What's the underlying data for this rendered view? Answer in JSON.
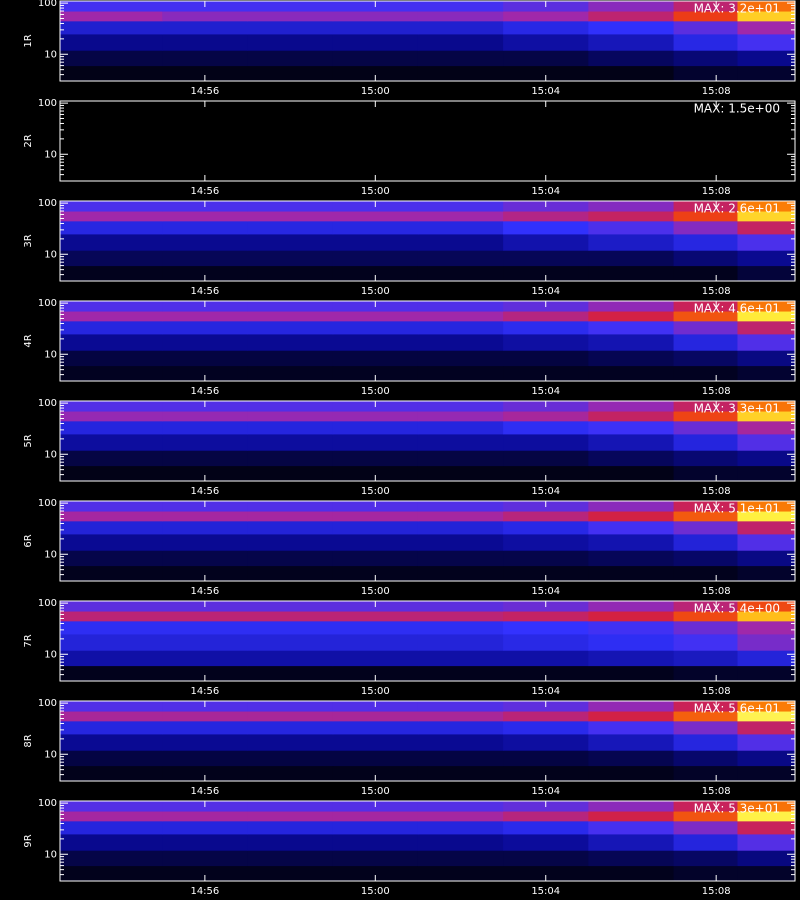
{
  "chart_data": [
    {
      "type": "heatmap",
      "ylabel": "1R",
      "annotation": "MAX: 3.2e+01",
      "log_y": true,
      "frame_color": "#ffffff",
      "x_bins": [
        892.6,
        895,
        897,
        899,
        901,
        903,
        905,
        907,
        908.5,
        909.85
      ],
      "y_bins": [
        3,
        6,
        12,
        25,
        45,
        70,
        110
      ],
      "values": [
        [
          1,
          1,
          1,
          1,
          1,
          1,
          1,
          2,
          2
        ],
        [
          3,
          3,
          3,
          3,
          3,
          3,
          4,
          5,
          6
        ],
        [
          6,
          6,
          6,
          6,
          6,
          7,
          8,
          10,
          12
        ],
        [
          9,
          9,
          9,
          9,
          9,
          10,
          11,
          13,
          16
        ],
        [
          16,
          15,
          15,
          15,
          15,
          16,
          18,
          22,
          28
        ],
        [
          12,
          12,
          12,
          12,
          12,
          13,
          15,
          18,
          24
        ]
      ],
      "value_max": 32,
      "xlim": [
        892.6,
        909.85
      ],
      "ylim": [
        3,
        110
      ],
      "xticks": [
        {
          "value": 896,
          "label": "14:56"
        },
        {
          "value": 900,
          "label": "15:00"
        },
        {
          "value": 904,
          "label": "15:04"
        },
        {
          "value": 908,
          "label": "15:08"
        }
      ],
      "yticks": [
        10,
        100
      ],
      "yminorticks": [
        4,
        5,
        6,
        7,
        8,
        9,
        20,
        30,
        40,
        50,
        60,
        70,
        80,
        90
      ]
    },
    {
      "type": "heatmap",
      "ylabel": "2R",
      "annotation": "MAX: 1.5e+00",
      "log_y": true,
      "frame_color": "#ffffff",
      "x_bins": [
        892.6,
        895,
        897,
        899,
        901,
        903,
        905,
        907,
        908.5,
        909.85
      ],
      "y_bins": [
        3,
        6,
        12,
        25,
        45,
        70,
        110
      ],
      "values": [
        [
          0,
          0,
          0,
          0,
          0,
          0,
          0,
          0,
          0
        ],
        [
          0,
          0,
          0,
          0,
          0,
          0,
          0,
          0,
          0
        ],
        [
          0,
          0,
          0,
          0,
          0,
          0,
          0,
          0,
          0
        ],
        [
          0,
          0,
          0,
          0,
          0,
          0,
          0,
          0,
          0
        ],
        [
          0,
          0,
          0,
          0,
          0,
          0,
          0,
          0,
          0
        ],
        [
          0,
          0,
          0,
          0,
          0,
          0,
          0,
          0,
          0
        ]
      ],
      "value_max": 1.5,
      "xlim": [
        892.6,
        909.85
      ],
      "ylim": [
        3,
        110
      ],
      "xticks": [
        {
          "value": 896,
          "label": "14:56"
        },
        {
          "value": 900,
          "label": "15:00"
        },
        {
          "value": 904,
          "label": "15:04"
        },
        {
          "value": 908,
          "label": "15:08"
        }
      ],
      "yticks": [
        10,
        100
      ],
      "yminorticks": [
        4,
        5,
        6,
        7,
        8,
        9,
        20,
        30,
        40,
        50,
        60,
        70,
        80,
        90
      ]
    },
    {
      "type": "heatmap",
      "ylabel": "3R",
      "annotation": "MAX: 2.6e+01",
      "log_y": true,
      "frame_color": "#ffffff",
      "x_bins": [
        892.6,
        895,
        897,
        899,
        901,
        903,
        905,
        907,
        908.5,
        909.85
      ],
      "y_bins": [
        3,
        6,
        12,
        25,
        45,
        70,
        110
      ],
      "values": [
        [
          1,
          1,
          1,
          1,
          1,
          1,
          1,
          1,
          2
        ],
        [
          3,
          3,
          3,
          3,
          3,
          3,
          3,
          4,
          5
        ],
        [
          5,
          5,
          5,
          5,
          5,
          6,
          7,
          8,
          10
        ],
        [
          8,
          8,
          8,
          8,
          8,
          9,
          10,
          12,
          15
        ],
        [
          13,
          13,
          13,
          13,
          13,
          14,
          15,
          18,
          23
        ],
        [
          10,
          10,
          10,
          10,
          10,
          11,
          12,
          15,
          20
        ]
      ],
      "value_max": 26,
      "xlim": [
        892.6,
        909.85
      ],
      "ylim": [
        3,
        110
      ],
      "xticks": [
        {
          "value": 896,
          "label": "14:56"
        },
        {
          "value": 900,
          "label": "15:00"
        },
        {
          "value": 904,
          "label": "15:04"
        },
        {
          "value": 908,
          "label": "15:08"
        }
      ],
      "yticks": [
        10,
        100
      ],
      "yminorticks": [
        4,
        5,
        6,
        7,
        8,
        9,
        20,
        30,
        40,
        50,
        60,
        70,
        80,
        90
      ]
    },
    {
      "type": "heatmap",
      "ylabel": "4R",
      "annotation": "MAX: 4.6e+01",
      "log_y": true,
      "frame_color": "#ffffff",
      "x_bins": [
        892.6,
        895,
        897,
        899,
        901,
        903,
        905,
        907,
        908.5,
        909.85
      ],
      "y_bins": [
        3,
        6,
        12,
        25,
        45,
        70,
        110
      ],
      "values": [
        [
          2,
          2,
          2,
          2,
          2,
          2,
          2,
          2,
          3
        ],
        [
          4,
          4,
          4,
          4,
          4,
          4,
          5,
          6,
          8
        ],
        [
          9,
          9,
          9,
          9,
          9,
          10,
          11,
          14,
          18
        ],
        [
          14,
          14,
          14,
          14,
          14,
          15,
          17,
          20,
          26
        ],
        [
          23,
          23,
          23,
          23,
          23,
          25,
          28,
          33,
          42
        ],
        [
          18,
          18,
          18,
          18,
          18,
          19,
          22,
          27,
          35
        ]
      ],
      "value_max": 46,
      "xlim": [
        892.6,
        909.85
      ],
      "ylim": [
        3,
        110
      ],
      "xticks": [
        {
          "value": 896,
          "label": "14:56"
        },
        {
          "value": 900,
          "label": "15:00"
        },
        {
          "value": 904,
          "label": "15:04"
        },
        {
          "value": 908,
          "label": "15:08"
        }
      ],
      "yticks": [
        10,
        100
      ],
      "yminorticks": [
        4,
        5,
        6,
        7,
        8,
        9,
        20,
        30,
        40,
        50,
        60,
        70,
        80,
        90
      ]
    },
    {
      "type": "heatmap",
      "ylabel": "5R",
      "annotation": "MAX: 3.3e+01",
      "log_y": true,
      "frame_color": "#ffffff",
      "x_bins": [
        892.6,
        895,
        897,
        899,
        901,
        903,
        905,
        907,
        908.5,
        909.85
      ],
      "y_bins": [
        3,
        6,
        12,
        25,
        45,
        70,
        110
      ],
      "values": [
        [
          1,
          1,
          1,
          1,
          1,
          1,
          1,
          2,
          2
        ],
        [
          3,
          3,
          3,
          3,
          3,
          3,
          4,
          5,
          6
        ],
        [
          7,
          7,
          7,
          7,
          7,
          7,
          8,
          10,
          13
        ],
        [
          10,
          10,
          10,
          10,
          10,
          11,
          12,
          14,
          17
        ],
        [
          16,
          16,
          16,
          16,
          16,
          17,
          19,
          23,
          29
        ],
        [
          13,
          13,
          13,
          13,
          13,
          14,
          16,
          19,
          25
        ]
      ],
      "value_max": 33,
      "xlim": [
        892.6,
        909.85
      ],
      "ylim": [
        3,
        110
      ],
      "xticks": [
        {
          "value": 896,
          "label": "14:56"
        },
        {
          "value": 900,
          "label": "15:00"
        },
        {
          "value": 904,
          "label": "15:04"
        },
        {
          "value": 908,
          "label": "15:08"
        }
      ],
      "yticks": [
        10,
        100
      ],
      "yminorticks": [
        4,
        5,
        6,
        7,
        8,
        9,
        20,
        30,
        40,
        50,
        60,
        70,
        80,
        90
      ]
    },
    {
      "type": "heatmap",
      "ylabel": "6R",
      "annotation": "MAX: 5.1e+01",
      "log_y": true,
      "frame_color": "#ffffff",
      "x_bins": [
        892.6,
        895,
        897,
        899,
        901,
        903,
        905,
        907,
        908.5,
        909.85
      ],
      "y_bins": [
        3,
        6,
        12,
        25,
        45,
        70,
        110
      ],
      "values": [
        [
          2,
          2,
          2,
          2,
          2,
          2,
          2,
          2,
          3
        ],
        [
          5,
          5,
          5,
          5,
          5,
          5,
          6,
          7,
          9
        ],
        [
          10,
          10,
          10,
          10,
          10,
          11,
          12,
          15,
          20
        ],
        [
          15,
          15,
          15,
          15,
          15,
          16,
          19,
          22,
          29
        ],
        [
          26,
          26,
          26,
          26,
          26,
          28,
          31,
          37,
          47
        ],
        [
          20,
          20,
          20,
          20,
          20,
          21,
          24,
          30,
          39
        ]
      ],
      "value_max": 51,
      "xlim": [
        892.6,
        909.85
      ],
      "ylim": [
        3,
        110
      ],
      "xticks": [
        {
          "value": 896,
          "label": "14:56"
        },
        {
          "value": 900,
          "label": "15:00"
        },
        {
          "value": 904,
          "label": "15:04"
        },
        {
          "value": 908,
          "label": "15:08"
        }
      ],
      "yticks": [
        10,
        100
      ],
      "yminorticks": [
        4,
        5,
        6,
        7,
        8,
        9,
        20,
        30,
        40,
        50,
        60,
        70,
        80,
        90
      ]
    },
    {
      "type": "heatmap",
      "ylabel": "7R",
      "annotation": "MAX: 5.4e+00",
      "log_y": true,
      "frame_color": "#ffffff",
      "x_bins": [
        892.6,
        895,
        897,
        899,
        901,
        903,
        905,
        907,
        908.5,
        909.85
      ],
      "y_bins": [
        3,
        6,
        12,
        25,
        45,
        70,
        110
      ],
      "values": [
        [
          0.2,
          0.2,
          0.2,
          0.2,
          0.2,
          0.2,
          0.2,
          0.3,
          0.3
        ],
        [
          1.2,
          1.2,
          1.2,
          1.2,
          1.2,
          1.2,
          1.3,
          1.4,
          1.6
        ],
        [
          1.6,
          1.6,
          1.6,
          1.6,
          1.6,
          1.7,
          1.8,
          2,
          2.4
        ],
        [
          1.8,
          1.8,
          1.8,
          1.8,
          1.8,
          1.9,
          2,
          2.3,
          2.7
        ],
        [
          3,
          3,
          3,
          3,
          3,
          3.1,
          3.3,
          3.8,
          4.6
        ],
        [
          2.2,
          2.2,
          2.2,
          2.2,
          2.2,
          2.3,
          2.6,
          3,
          3.8
        ]
      ],
      "value_max": 5.4,
      "xlim": [
        892.6,
        909.85
      ],
      "ylim": [
        3,
        110
      ],
      "xticks": [
        {
          "value": 896,
          "label": "14:56"
        },
        {
          "value": 900,
          "label": "15:00"
        },
        {
          "value": 904,
          "label": "15:04"
        },
        {
          "value": 908,
          "label": "15:08"
        }
      ],
      "yticks": [
        10,
        100
      ],
      "yminorticks": [
        4,
        5,
        6,
        7,
        8,
        9,
        20,
        30,
        40,
        50,
        60,
        70,
        80,
        90
      ]
    },
    {
      "type": "heatmap",
      "ylabel": "8R",
      "annotation": "MAX: 5.6e+01",
      "log_y": true,
      "frame_color": "#ffffff",
      "x_bins": [
        892.6,
        895,
        897,
        899,
        901,
        903,
        905,
        907,
        908.5,
        909.85
      ],
      "y_bins": [
        3,
        6,
        12,
        25,
        45,
        70,
        110
      ],
      "values": [
        [
          2,
          2,
          2,
          2,
          2,
          2,
          2,
          3,
          3
        ],
        [
          5,
          5,
          5,
          5,
          5,
          5,
          6,
          8,
          10
        ],
        [
          11,
          11,
          11,
          11,
          11,
          12,
          14,
          17,
          22
        ],
        [
          17,
          17,
          17,
          17,
          17,
          18,
          21,
          25,
          32
        ],
        [
          29,
          29,
          29,
          29,
          29,
          31,
          34,
          41,
          52
        ],
        [
          22,
          22,
          22,
          22,
          22,
          23,
          27,
          33,
          43
        ]
      ],
      "value_max": 56,
      "xlim": [
        892.6,
        909.85
      ],
      "ylim": [
        3,
        110
      ],
      "xticks": [
        {
          "value": 896,
          "label": "14:56"
        },
        {
          "value": 900,
          "label": "15:00"
        },
        {
          "value": 904,
          "label": "15:04"
        },
        {
          "value": 908,
          "label": "15:08"
        }
      ],
      "yticks": [
        10,
        100
      ],
      "yminorticks": [
        4,
        5,
        6,
        7,
        8,
        9,
        20,
        30,
        40,
        50,
        60,
        70,
        80,
        90
      ]
    },
    {
      "type": "heatmap",
      "ylabel": "9R",
      "annotation": "MAX: 5.3e+01",
      "log_y": true,
      "frame_color": "#ffffff",
      "x_bins": [
        892.6,
        895,
        897,
        899,
        901,
        903,
        905,
        907,
        908.5,
        909.85
      ],
      "y_bins": [
        3,
        6,
        12,
        25,
        45,
        70,
        110
      ],
      "values": [
        [
          2,
          2,
          2,
          2,
          2,
          2,
          2,
          3,
          3
        ],
        [
          5,
          5,
          5,
          5,
          5,
          5,
          6,
          7,
          9
        ],
        [
          10,
          10,
          10,
          10,
          10,
          11,
          13,
          16,
          21
        ],
        [
          16,
          16,
          16,
          16,
          16,
          17,
          20,
          24,
          31
        ],
        [
          27,
          27,
          27,
          27,
          27,
          29,
          32,
          38,
          49
        ],
        [
          21,
          21,
          21,
          21,
          21,
          22,
          25,
          31,
          40
        ]
      ],
      "value_max": 53,
      "xlim": [
        892.6,
        909.85
      ],
      "ylim": [
        3,
        110
      ],
      "xticks": [
        {
          "value": 896,
          "label": "14:56"
        },
        {
          "value": 900,
          "label": "15:00"
        },
        {
          "value": 904,
          "label": "15:04"
        },
        {
          "value": 908,
          "label": "15:08"
        }
      ],
      "yticks": [
        10,
        100
      ],
      "yminorticks": [
        4,
        5,
        6,
        7,
        8,
        9,
        20,
        30,
        40,
        50,
        60,
        70,
        80,
        90
      ]
    }
  ]
}
